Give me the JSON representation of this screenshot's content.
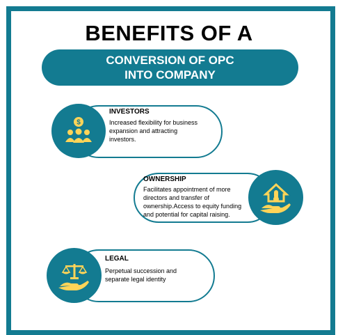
{
  "header": {
    "title": "BENEFITS OF A",
    "banner_line1": "CONVERSION OF OPC",
    "banner_line2": "INTO COMPANY"
  },
  "cards": [
    {
      "title": "INVESTORS",
      "desc_lines": [
        "Increased flexibility for business",
        "expansion and attracting",
        "investors."
      ],
      "icon": "investor-group-dollar-icon"
    },
    {
      "title": "OWNERSHIP",
      "desc_lines": [
        "Facilitates appointment of more",
        "directors and transfer of",
        "ownership.Access to equity funding",
        "and potential for capital raising."
      ],
      "icon": "hand-house-thermometer-icon"
    },
    {
      "title": "LEGAL",
      "desc_lines": [
        "Perpetual succession and",
        "separate legal identity"
      ],
      "icon": "hand-scales-icon"
    }
  ],
  "colors": {
    "teal": "#137b91",
    "icon_yellow": "#fed458"
  }
}
